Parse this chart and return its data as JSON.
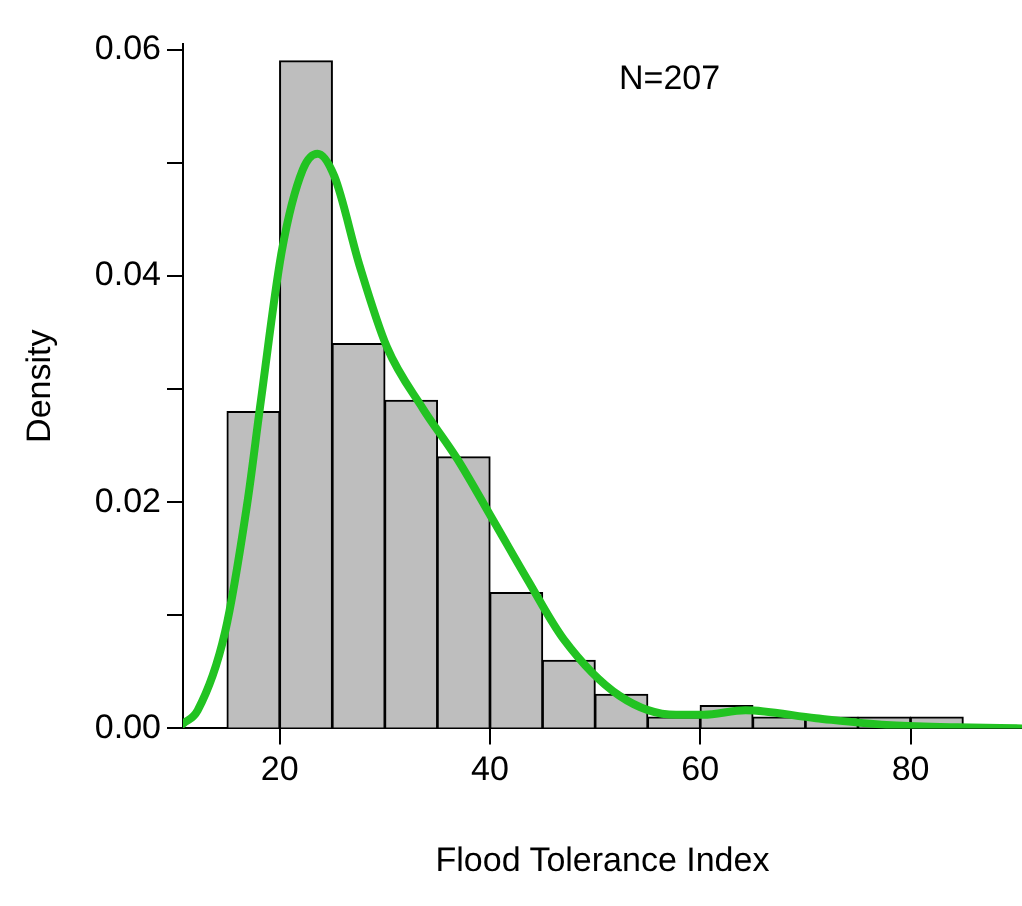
{
  "chart_data": {
    "type": "histogram",
    "xlabel": "Flood Tolerance Index",
    "ylabel": "Density",
    "annotations": [
      "N=207"
    ],
    "bins": [
      15,
      20,
      25,
      30,
      35,
      40,
      45,
      50,
      55,
      60,
      65,
      70,
      75,
      80,
      85
    ],
    "values": [
      0.028,
      0.059,
      0.034,
      0.029,
      0.024,
      0.012,
      0.006,
      0.003,
      0.001,
      0.002,
      0.001,
      0.001,
      0.001,
      0.001
    ],
    "color": "#bebebe",
    "series": [
      {
        "type": "line",
        "color": "#22c322",
        "x": [
          10.8,
          12.2,
          14.8,
          16.9,
          18.2,
          20.2,
          22.2,
          23.6,
          25.2,
          27.6,
          30.2,
          33.6,
          36.9,
          40.3,
          43.6,
          47.0,
          52.3,
          57.7,
          60.3,
          64.3,
          71.0,
          77.7,
          84.4,
          90.6
        ],
        "values": [
          0.0004,
          0.0016,
          0.0085,
          0.0198,
          0.0289,
          0.0422,
          0.0494,
          0.0508,
          0.0488,
          0.0409,
          0.0337,
          0.0283,
          0.0238,
          0.0184,
          0.0131,
          0.0079,
          0.0029,
          0.0012,
          0.0012,
          0.0016,
          0.0009,
          0.0003,
          0.0001,
          0
        ]
      }
    ],
    "xlim": [
      10.8,
      90.6
    ],
    "ylim": [
      0,
      0.0605
    ],
    "xticks": [
      20,
      40,
      60,
      80
    ],
    "yticks": [
      {
        "value": 0,
        "label": "0.00"
      },
      {
        "value": 0.01,
        "label": null
      },
      {
        "value": 0.02,
        "label": "0.02"
      },
      {
        "value": 0.03,
        "label": null
      },
      {
        "value": 0.04,
        "label": "0.04"
      },
      {
        "value": 0.05,
        "label": null
      },
      {
        "value": 0.06,
        "label": "0.06"
      }
    ],
    "grid": false,
    "legend": false,
    "marker": "none"
  }
}
